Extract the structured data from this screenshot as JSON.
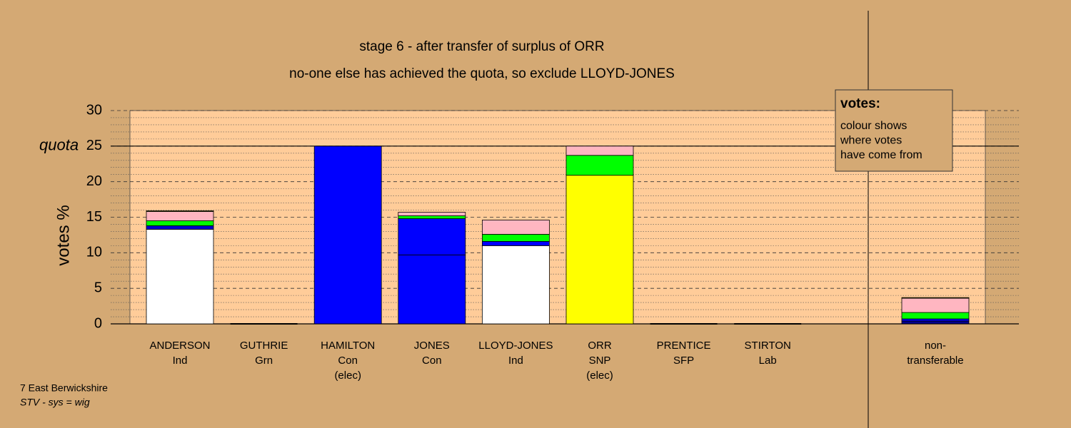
{
  "chart_data": {
    "type": "stacked-bar",
    "title": "stage 6 - after transfer of surplus of ORR",
    "subtitle": "no-one else has achieved the quota, so exclude LLOYD-JONES",
    "y_label": "votes %",
    "ylim": [
      0,
      30
    ],
    "yticks": [
      0,
      5,
      10,
      15,
      20,
      25,
      30
    ],
    "minor_yticks": [
      1,
      2,
      3,
      4,
      6,
      7,
      8,
      9,
      11,
      12,
      13,
      14,
      16,
      17,
      18,
      19,
      21,
      22,
      23,
      24,
      26,
      27,
      28,
      29
    ],
    "quota": {
      "label": "quota",
      "value": 25
    },
    "categories": [
      {
        "lines": [
          "ANDERSON",
          "Ind"
        ],
        "segments": [
          {
            "value": 13.3,
            "color": "#ffffff"
          },
          {
            "value": 0.5,
            "color": "#0000cc"
          },
          {
            "value": 0.7,
            "color": "#00ff00"
          },
          {
            "value": 1.3,
            "color": "#ffb6c1"
          },
          {
            "value": 0.1,
            "color": "#8b8b00"
          }
        ]
      },
      {
        "lines": [
          "GUTHRIE",
          "Grn"
        ],
        "segments": []
      },
      {
        "lines": [
          "HAMILTON",
          "Con",
          "(elec)"
        ],
        "segments": [
          {
            "value": 25,
            "color": "#0000ff"
          }
        ]
      },
      {
        "lines": [
          "JONES",
          "Con"
        ],
        "segments": [
          {
            "value": 9.7,
            "color": "#0000ff"
          },
          {
            "value": 5.1,
            "color": "#0000ff"
          },
          {
            "value": 0.4,
            "color": "#00ff00"
          },
          {
            "value": 0.5,
            "color": "#ffb6c1"
          }
        ]
      },
      {
        "lines": [
          "LLOYD-JONES",
          "Ind"
        ],
        "segments": [
          {
            "value": 11,
            "color": "#ffffff"
          },
          {
            "value": 0.6,
            "color": "#0000ff"
          },
          {
            "value": 1,
            "color": "#00ff00"
          },
          {
            "value": 2,
            "color": "#ffb6c1"
          }
        ]
      },
      {
        "lines": [
          "ORR",
          "SNP",
          "(elec)"
        ],
        "segments": [
          {
            "value": 20.9,
            "color": "#ffff00"
          },
          {
            "value": 2.8,
            "color": "#00ff00"
          },
          {
            "value": 1.3,
            "color": "#ffb6c1"
          }
        ]
      },
      {
        "lines": [
          "PRENTICE",
          "SFP"
        ],
        "segments": []
      },
      {
        "lines": [
          "STIRTON",
          "Lab"
        ],
        "segments": []
      },
      {
        "lines": [
          "non-",
          "transferable"
        ],
        "segments": [
          {
            "value": 0.4,
            "color": "#00008b"
          },
          {
            "value": 0.3,
            "color": "#0000ff"
          },
          {
            "value": 0.9,
            "color": "#00ff00"
          },
          {
            "value": 2,
            "color": "#ffb6c1"
          },
          {
            "value": 0.1,
            "color": "#8b8b00"
          }
        ]
      }
    ],
    "note_box": {
      "heading": "votes:",
      "lines": [
        "colour shows",
        "where votes",
        "have come from"
      ]
    },
    "footer": [
      "7 East Berwickshire",
      "STV - sys = wig"
    ]
  }
}
